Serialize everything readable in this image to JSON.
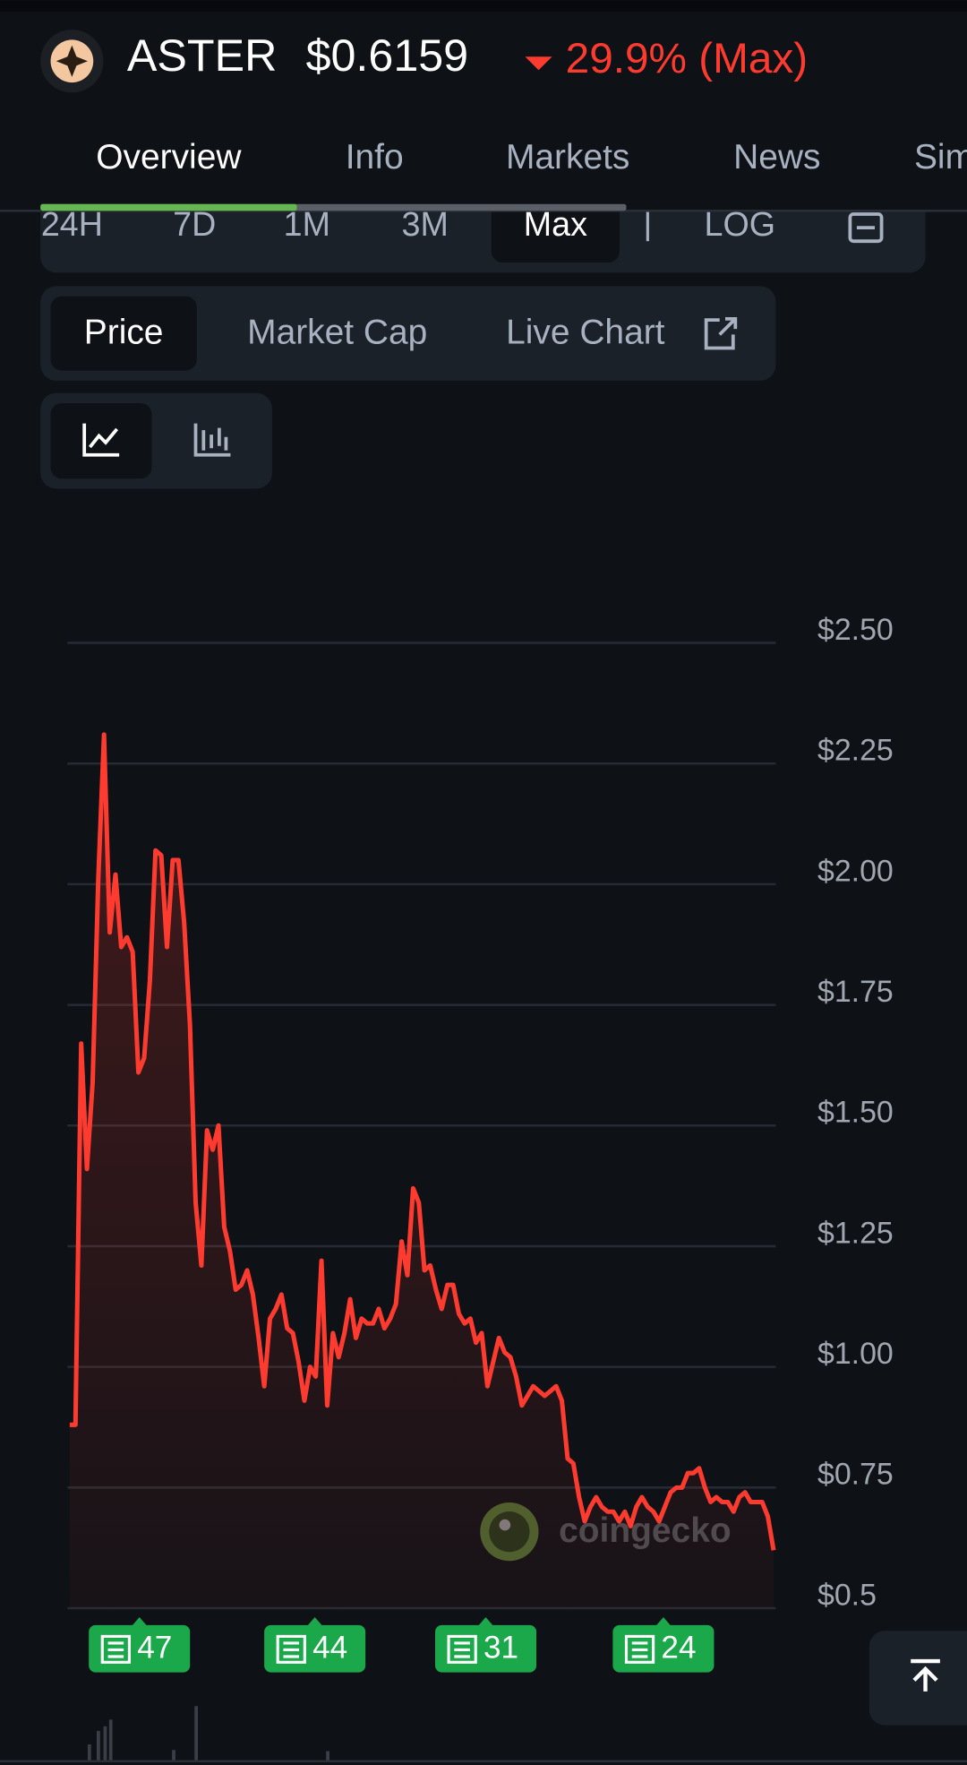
{
  "header": {
    "symbol": "ASTER",
    "price": "$0.6159",
    "change": "29.9% (Max)"
  },
  "tabs": [
    "Overview",
    "Info",
    "Markets",
    "News",
    "Sim"
  ],
  "ranges": [
    "24H",
    "7D",
    "1M",
    "3M",
    "Max",
    "LOG"
  ],
  "chart_tabs": [
    "Price",
    "Market Cap",
    "Live Chart"
  ],
  "watermark": "coingecko",
  "news_badges": [
    47,
    44,
    31,
    24
  ],
  "chart_data": {
    "type": "line",
    "color": "#ff3b30",
    "values": [
      0.88,
      0.88,
      1.67,
      1.41,
      1.59,
      2.01,
      2.31,
      1.9,
      2.02,
      1.87,
      1.89,
      1.86,
      1.61,
      1.64,
      1.8,
      2.07,
      2.06,
      1.87,
      2.05,
      2.05,
      1.92,
      1.71,
      1.34,
      1.21,
      1.49,
      1.45,
      1.5,
      1.29,
      1.24,
      1.16,
      1.17,
      1.2,
      1.15,
      1.06,
      0.96,
      1.1,
      1.12,
      1.15,
      1.08,
      1.07,
      1.01,
      0.93,
      1.0,
      0.98,
      1.22,
      0.92,
      1.07,
      1.02,
      1.07,
      1.14,
      1.06,
      1.1,
      1.09,
      1.09,
      1.12,
      1.08,
      1.1,
      1.13,
      1.26,
      1.19,
      1.37,
      1.34,
      1.2,
      1.21,
      1.16,
      1.12,
      1.17,
      1.17,
      1.11,
      1.09,
      1.1,
      1.05,
      1.07,
      0.96,
      1.01,
      1.06,
      1.03,
      1.02,
      0.98,
      0.92,
      0.94,
      0.96,
      0.95,
      0.94,
      0.95,
      0.96,
      0.93,
      0.81,
      0.8,
      0.73,
      0.68,
      0.71,
      0.73,
      0.71,
      0.7,
      0.7,
      0.68,
      0.7,
      0.67,
      0.71,
      0.73,
      0.71,
      0.7,
      0.68,
      0.71,
      0.74,
      0.75,
      0.75,
      0.78,
      0.78,
      0.79,
      0.75,
      0.72,
      0.73,
      0.72,
      0.72,
      0.7,
      0.73,
      0.74,
      0.72,
      0.72,
      0.72,
      0.69,
      0.62
    ],
    "ylim": [
      0.5,
      2.5
    ],
    "yticks": [
      {
        "value": 2.5,
        "label": "$2.50"
      },
      {
        "value": 2.25,
        "label": "$2.25"
      },
      {
        "value": 2.0,
        "label": "$2.00"
      },
      {
        "value": 1.75,
        "label": "$1.75"
      },
      {
        "value": 1.5,
        "label": "$1.50"
      },
      {
        "value": 1.25,
        "label": "$1.25"
      },
      {
        "value": 1.0,
        "label": "$1.00"
      },
      {
        "value": 0.75,
        "label": "$0.75"
      },
      {
        "value": 0.5,
        "label": "$0.5"
      }
    ],
    "grid": true
  }
}
